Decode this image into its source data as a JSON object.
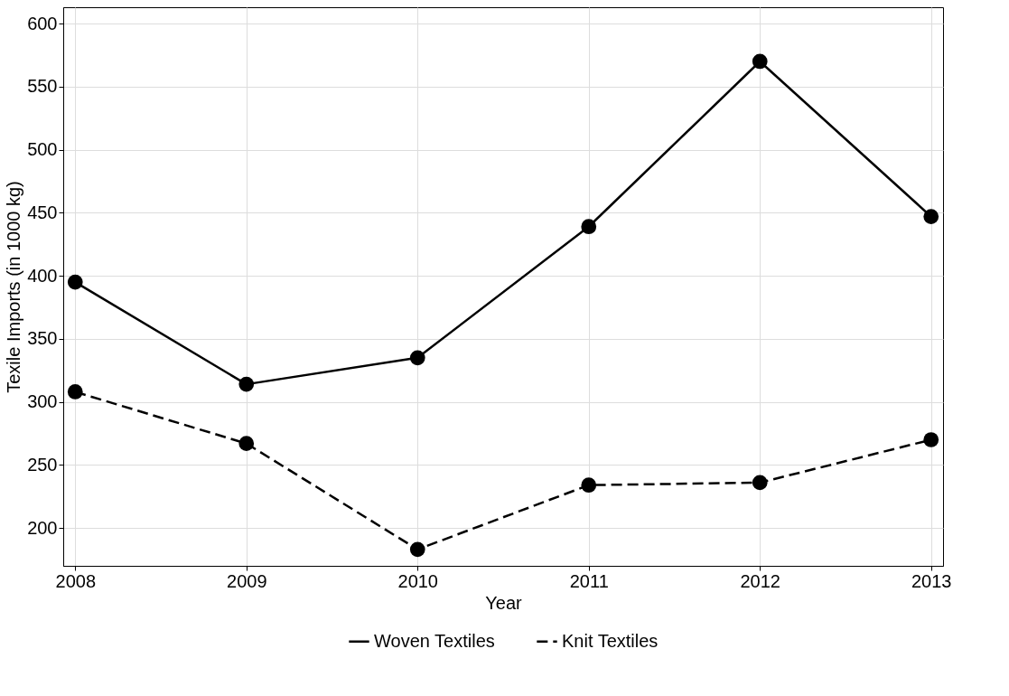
{
  "chart_data": {
    "type": "line",
    "xlabel": "Year",
    "ylabel": "Texile Imports (in 1000 kg)",
    "x": [
      2008,
      2009,
      2010,
      2011,
      2012,
      2013
    ],
    "series": [
      {
        "name": "Woven Textiles",
        "color": "#000000",
        "line_style": "solid",
        "values": [
          395,
          314,
          335,
          439,
          570,
          447
        ]
      },
      {
        "name": "Knit Textiles",
        "color": "#000000",
        "line_style": "dashed",
        "values": [
          308,
          267,
          183,
          234,
          236,
          270
        ]
      }
    ],
    "xlim": [
      2007.93,
      2013.07
    ],
    "xticks": [
      2008,
      2009,
      2010,
      2011,
      2012,
      2013
    ],
    "ylim": [
      170,
      613
    ],
    "yticks": [
      200,
      250,
      300,
      350,
      400,
      450,
      500,
      550,
      600
    ],
    "grid": true,
    "legend": "bottom",
    "marker": "circle"
  }
}
